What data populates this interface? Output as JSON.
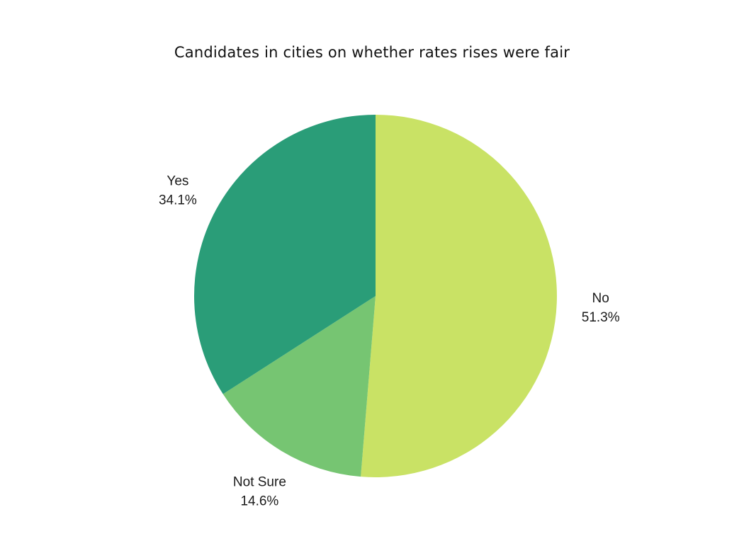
{
  "chart_data": {
    "type": "pie",
    "title": "Candidates in cities on whether rates rises were fair",
    "slices": [
      {
        "label": "No",
        "value": 51.3,
        "value_label": "51.3%",
        "color": "#c9e265"
      },
      {
        "label": "Not Sure",
        "value": 14.6,
        "value_label": "14.6%",
        "color": "#76c572"
      },
      {
        "label": "Yes",
        "value": 34.1,
        "value_label": "34.1%",
        "color": "#2a9d78"
      }
    ],
    "start_angle": "top",
    "direction": "clockwise",
    "legend": "none"
  }
}
